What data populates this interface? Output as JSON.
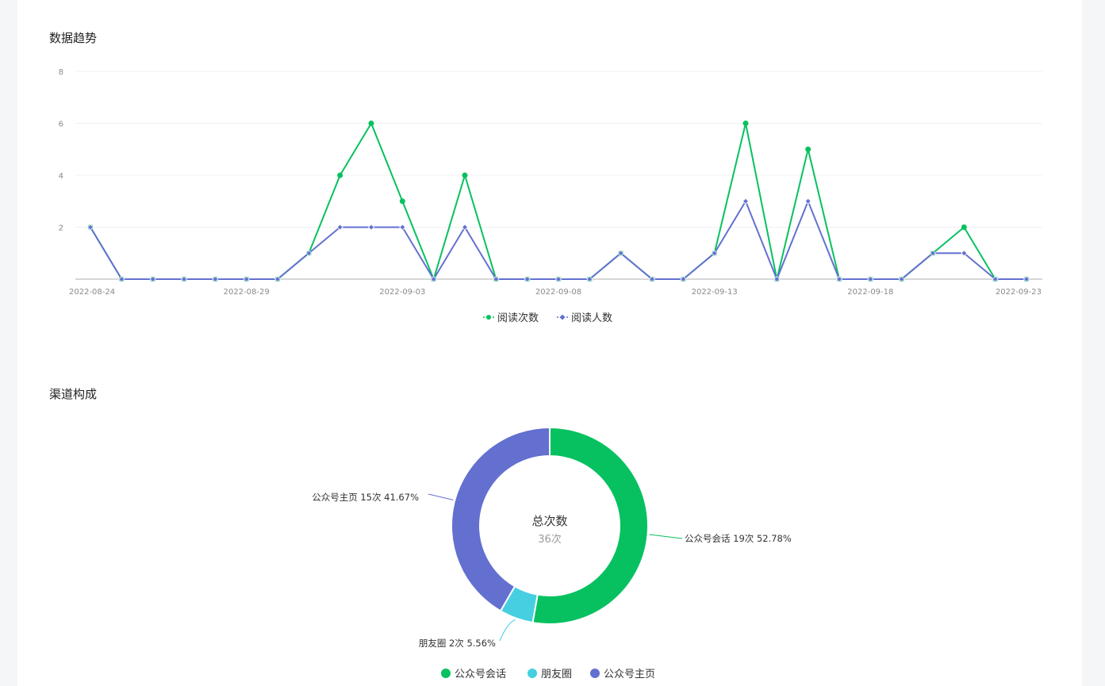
{
  "trend_section": {
    "title": "数据趋势"
  },
  "channel_section": {
    "title": "渠道构成"
  },
  "chart_data": [
    {
      "type": "line",
      "title": "数据趋势",
      "x": [
        "2022-08-24",
        "2022-08-25",
        "2022-08-26",
        "2022-08-27",
        "2022-08-28",
        "2022-08-29",
        "2022-08-30",
        "2022-08-31",
        "2022-09-01",
        "2022-09-02",
        "2022-09-03",
        "2022-09-04",
        "2022-09-05",
        "2022-09-06",
        "2022-09-07",
        "2022-09-08",
        "2022-09-09",
        "2022-09-10",
        "2022-09-11",
        "2022-09-12",
        "2022-09-13",
        "2022-09-14",
        "2022-09-15",
        "2022-09-16",
        "2022-09-17",
        "2022-09-18",
        "2022-09-19",
        "2022-09-20",
        "2022-09-21",
        "2022-09-22",
        "2022-09-23"
      ],
      "x_tick_labels": [
        "2022-08-24",
        "2022-08-29",
        "2022-09-03",
        "2022-09-08",
        "2022-09-13",
        "2022-09-18",
        "2022-09-23"
      ],
      "y_ticks": [
        2,
        4,
        6,
        8
      ],
      "ylim": [
        0,
        8
      ],
      "series": [
        {
          "name": "阅读次数",
          "color": "#07c160",
          "marker": "circle",
          "values": [
            2,
            0,
            0,
            0,
            0,
            0,
            0,
            1,
            4,
            6,
            3,
            0,
            4,
            0,
            0,
            0,
            0,
            1,
            0,
            0,
            1,
            6,
            0,
            5,
            0,
            0,
            0,
            1,
            2,
            0,
            0
          ]
        },
        {
          "name": "阅读人数",
          "color": "#6370d0",
          "marker": "diamond",
          "values": [
            2,
            0,
            0,
            0,
            0,
            0,
            0,
            1,
            2,
            2,
            2,
            0,
            2,
            0,
            0,
            0,
            0,
            1,
            0,
            0,
            1,
            3,
            0,
            3,
            0,
            0,
            0,
            1,
            1,
            0,
            0
          ]
        }
      ],
      "grid": true,
      "legend_position": "bottom"
    },
    {
      "type": "pie",
      "title": "渠道构成",
      "donut": true,
      "center_title": "总次数",
      "center_value": "36次",
      "slices": [
        {
          "name": "公众号会话",
          "value": 19,
          "label": "公众号会话 19次 52.78%",
          "color": "#07c160"
        },
        {
          "name": "朋友圈",
          "value": 2,
          "label": "朋友圈 2次 5.56%",
          "color": "#46cfe0"
        },
        {
          "name": "公众号主页",
          "value": 15,
          "label": "公众号主页 15次 41.67%",
          "color": "#6370d0"
        }
      ],
      "legend_position": "bottom"
    }
  ]
}
